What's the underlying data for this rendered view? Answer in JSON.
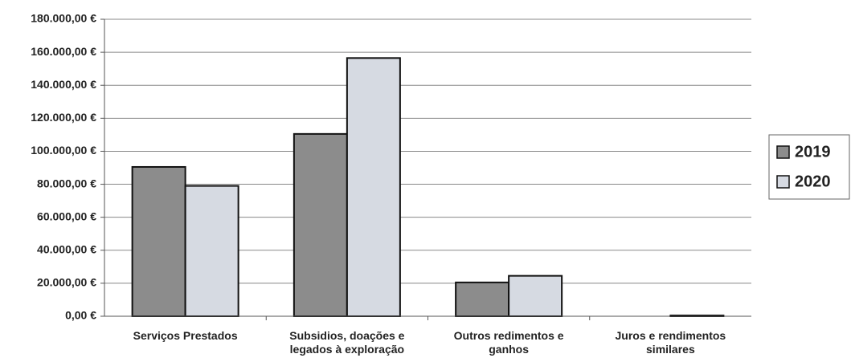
{
  "chart_data": {
    "type": "bar",
    "categories": [
      "Serviços Prestados",
      "Subsidios, doações e legados à exploração",
      "Outros redimentos e ganhos",
      "Juros e rendimentos similares"
    ],
    "series": [
      {
        "name": "2019",
        "color": "#8c8c8c",
        "values": [
          90500,
          110500,
          20500,
          0
        ]
      },
      {
        "name": "2020",
        "color": "#d6dae2",
        "values": [
          79000,
          156500,
          24500,
          500
        ]
      }
    ],
    "ylim": [
      0,
      180000
    ],
    "yticks": [
      {
        "value": 0,
        "label": "0,00 €"
      },
      {
        "value": 20000,
        "label": "20.000,00 €"
      },
      {
        "value": 40000,
        "label": "40.000,00 €"
      },
      {
        "value": 60000,
        "label": "60.000,00 €"
      },
      {
        "value": 80000,
        "label": "80.000,00 €"
      },
      {
        "value": 100000,
        "label": "100.000,00 €"
      },
      {
        "value": 120000,
        "label": "120.000,00 €"
      },
      {
        "value": 140000,
        "label": "140.000,00 €"
      },
      {
        "value": 160000,
        "label": "160.000,00 €"
      },
      {
        "value": 180000,
        "label": "180.000,00 €"
      }
    ],
    "grid": true,
    "legend": "right"
  }
}
